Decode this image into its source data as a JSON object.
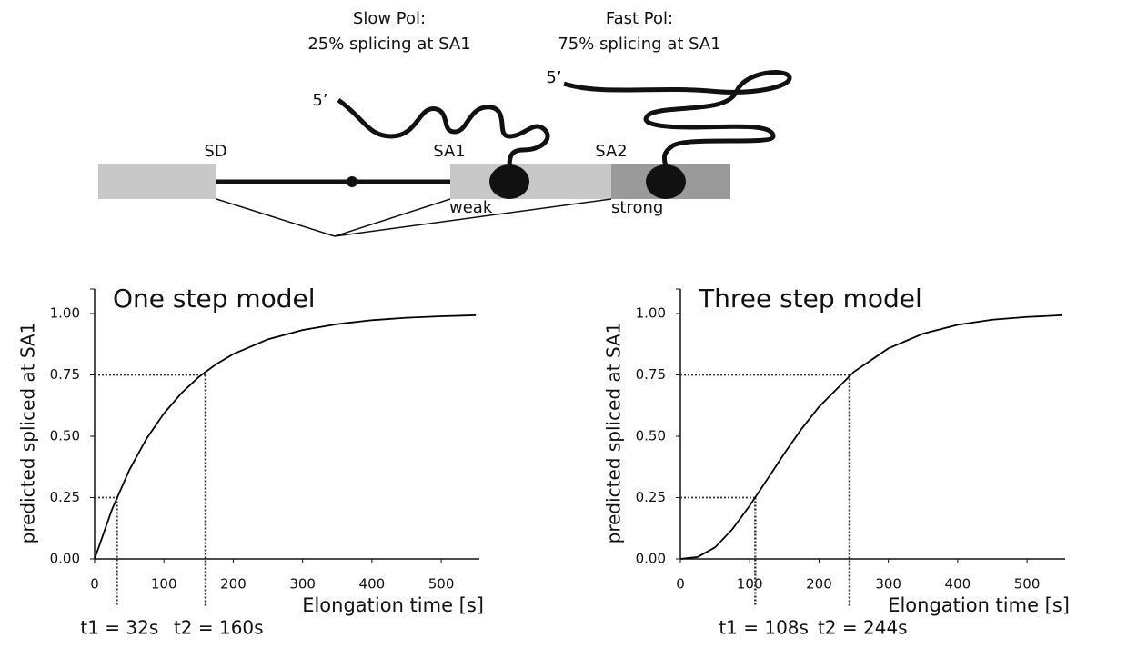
{
  "diagram": {
    "slow_title": "Slow Pol:",
    "slow_text": "25% splicing at SA1",
    "fast_title": "Fast Pol:",
    "fast_text": "75% splicing at SA1",
    "slow_five": "5’",
    "fast_five": "5’",
    "sd": "SD",
    "sa1": "SA1",
    "sa2": "SA2",
    "weak": "weak",
    "strong": "strong"
  },
  "chart_data": [
    {
      "type": "line",
      "title": "One step model",
      "x_label": "Elongation time [s]",
      "y_label": "predicted spliced at SA1",
      "color": "#000000",
      "x": [
        0,
        25,
        50,
        75,
        100,
        125,
        150,
        175,
        200,
        250,
        300,
        350,
        400,
        450,
        500,
        550
      ],
      "values": [
        0,
        0.201,
        0.362,
        0.491,
        0.593,
        0.675,
        0.741,
        0.793,
        0.835,
        0.895,
        0.933,
        0.957,
        0.973,
        0.983,
        0.989,
        0.993
      ],
      "xlim": [
        0,
        555
      ],
      "ylim": [
        0,
        1.1
      ],
      "xticks": [
        0,
        100,
        200,
        300,
        400,
        500
      ],
      "yticks": [
        {
          "value": 0,
          "label": "0.00"
        },
        {
          "value": 0.25,
          "label": "0.25"
        },
        {
          "value": 0.5,
          "label": "0.50"
        },
        {
          "value": 0.75,
          "label": "0.75"
        },
        {
          "value": 1,
          "label": "1.00"
        }
      ],
      "markers": [
        {
          "x": 32,
          "y": 0.25,
          "label": "t1 = 32s"
        },
        {
          "x": 160,
          "y": 0.75,
          "label": "t2 = 160s"
        }
      ]
    },
    {
      "type": "line",
      "title": "Three step model",
      "x_label": "Elongation time [s]",
      "y_label": "predicted spliced at SA1",
      "color": "#000000",
      "x": [
        0,
        25,
        50,
        75,
        100,
        125,
        150,
        175,
        200,
        250,
        300,
        350,
        400,
        450,
        500,
        550
      ],
      "values": [
        0,
        0.008,
        0.047,
        0.121,
        0.217,
        0.323,
        0.43,
        0.531,
        0.62,
        0.762,
        0.858,
        0.918,
        0.954,
        0.975,
        0.986,
        0.993
      ],
      "xlim": [
        0,
        555
      ],
      "ylim": [
        0,
        1.1
      ],
      "xticks": [
        0,
        100,
        200,
        300,
        400,
        500
      ],
      "yticks": [
        {
          "value": 0,
          "label": "0.00"
        },
        {
          "value": 0.25,
          "label": "0.25"
        },
        {
          "value": 0.5,
          "label": "0.50"
        },
        {
          "value": 0.75,
          "label": "0.75"
        },
        {
          "value": 1,
          "label": "1.00"
        }
      ],
      "markers": [
        {
          "x": 108,
          "y": 0.25,
          "label": "t1 = 108s"
        },
        {
          "x": 244,
          "y": 0.75,
          "label": "t2 = 244s"
        }
      ]
    }
  ]
}
